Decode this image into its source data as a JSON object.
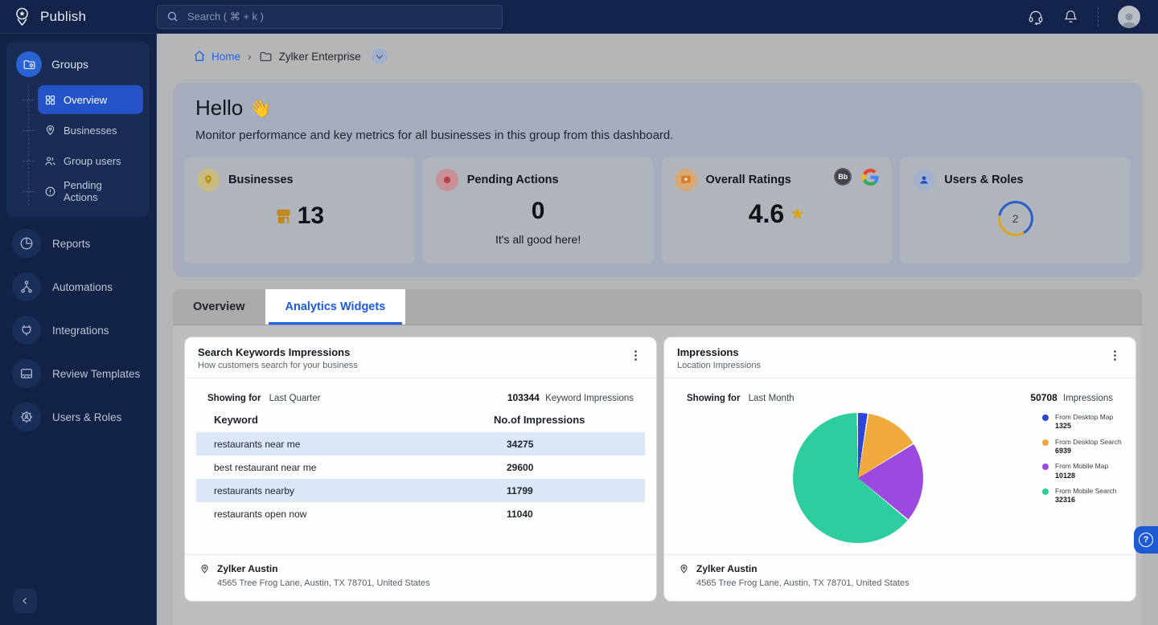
{
  "topbar": {
    "app_name": "Publish",
    "search_placeholder": "Search ( ⌘ + k )"
  },
  "breadcrumb": {
    "home": "Home",
    "separator": "›",
    "group_name": "Zylker Enterprise"
  },
  "sidebar": {
    "groups_label": "Groups",
    "groups_items": [
      {
        "label": "Overview",
        "active": true
      },
      {
        "label": "Businesses",
        "active": false
      },
      {
        "label": "Group users",
        "active": false
      },
      {
        "label": "Pending Actions",
        "active": false
      }
    ],
    "items": [
      "Reports",
      "Automations",
      "Integrations",
      "Review Templates",
      "Users & Roles"
    ]
  },
  "hero": {
    "title": "Hello",
    "wave_emoji": "👋",
    "subtitle": "Monitor performance and key metrics for all businesses in this group from this dashboard.",
    "cards": {
      "businesses": {
        "label": "Businesses",
        "value": "13"
      },
      "pending": {
        "label": "Pending Actions",
        "value": "0",
        "note": "It's all good here!"
      },
      "ratings": {
        "label": "Overall Ratings",
        "value": "4.6"
      },
      "users": {
        "label": "Users & Roles",
        "value": "2"
      }
    }
  },
  "tabs": [
    {
      "label": "Overview",
      "active": false
    },
    {
      "label": "Analytics Widgets",
      "active": true
    }
  ],
  "widgets": {
    "keywords": {
      "title": "Search Keywords Impressions",
      "subtitle": "How customers search for your business",
      "showing_for_label": "Showing for",
      "showing_for_value": "Last Quarter",
      "total_value": "103344",
      "total_suffix": "Keyword Impressions",
      "columns": [
        "Keyword",
        "No.of Impressions"
      ],
      "rows": [
        {
          "keyword": "restaurants near me",
          "impressions": "34275"
        },
        {
          "keyword": "best restaurant near me",
          "impressions": "29600"
        },
        {
          "keyword": "restaurants nearby",
          "impressions": "11799"
        },
        {
          "keyword": "restaurants open now",
          "impressions": "11040"
        }
      ],
      "location": {
        "name": "Zylker Austin",
        "address": "4565 Tree Frog Lane, Austin, TX 78701, United States"
      }
    },
    "impressions": {
      "title": "Impressions",
      "subtitle": "Location Impressions",
      "showing_for_label": "Showing for",
      "showing_for_value": "Last Month",
      "total_value": "50708",
      "total_suffix": "Impressions",
      "location": {
        "name": "Zylker Austin",
        "address": "4565 Tree Frog Lane, Austin, TX 78701, United States"
      }
    }
  },
  "chart_data": {
    "type": "pie",
    "title": "Impressions",
    "subtitle": "Location Impressions",
    "period": "Last Month",
    "total": 50708,
    "legend_position": "right",
    "series": [
      {
        "name": "From Desktop Map",
        "value": 1325,
        "color": "#2b46d9"
      },
      {
        "name": "From Desktop Search",
        "value": 6939,
        "color": "#f1a83c"
      },
      {
        "name": "From Mobile Map",
        "value": 10128,
        "color": "#9b49de"
      },
      {
        "name": "From Mobile Search",
        "value": 32316,
        "color": "#2ecd9f"
      }
    ]
  },
  "icons": {
    "kebab": "⋮",
    "star": "★",
    "question": "?",
    "bb_badge": "Bb"
  },
  "colors": {
    "accent_blue": "#2563eb",
    "sidebar_bg": "#122347",
    "active_item": "#2453c8",
    "row_highlight": "#dbe7f7",
    "star_gold": "#d9a414"
  }
}
